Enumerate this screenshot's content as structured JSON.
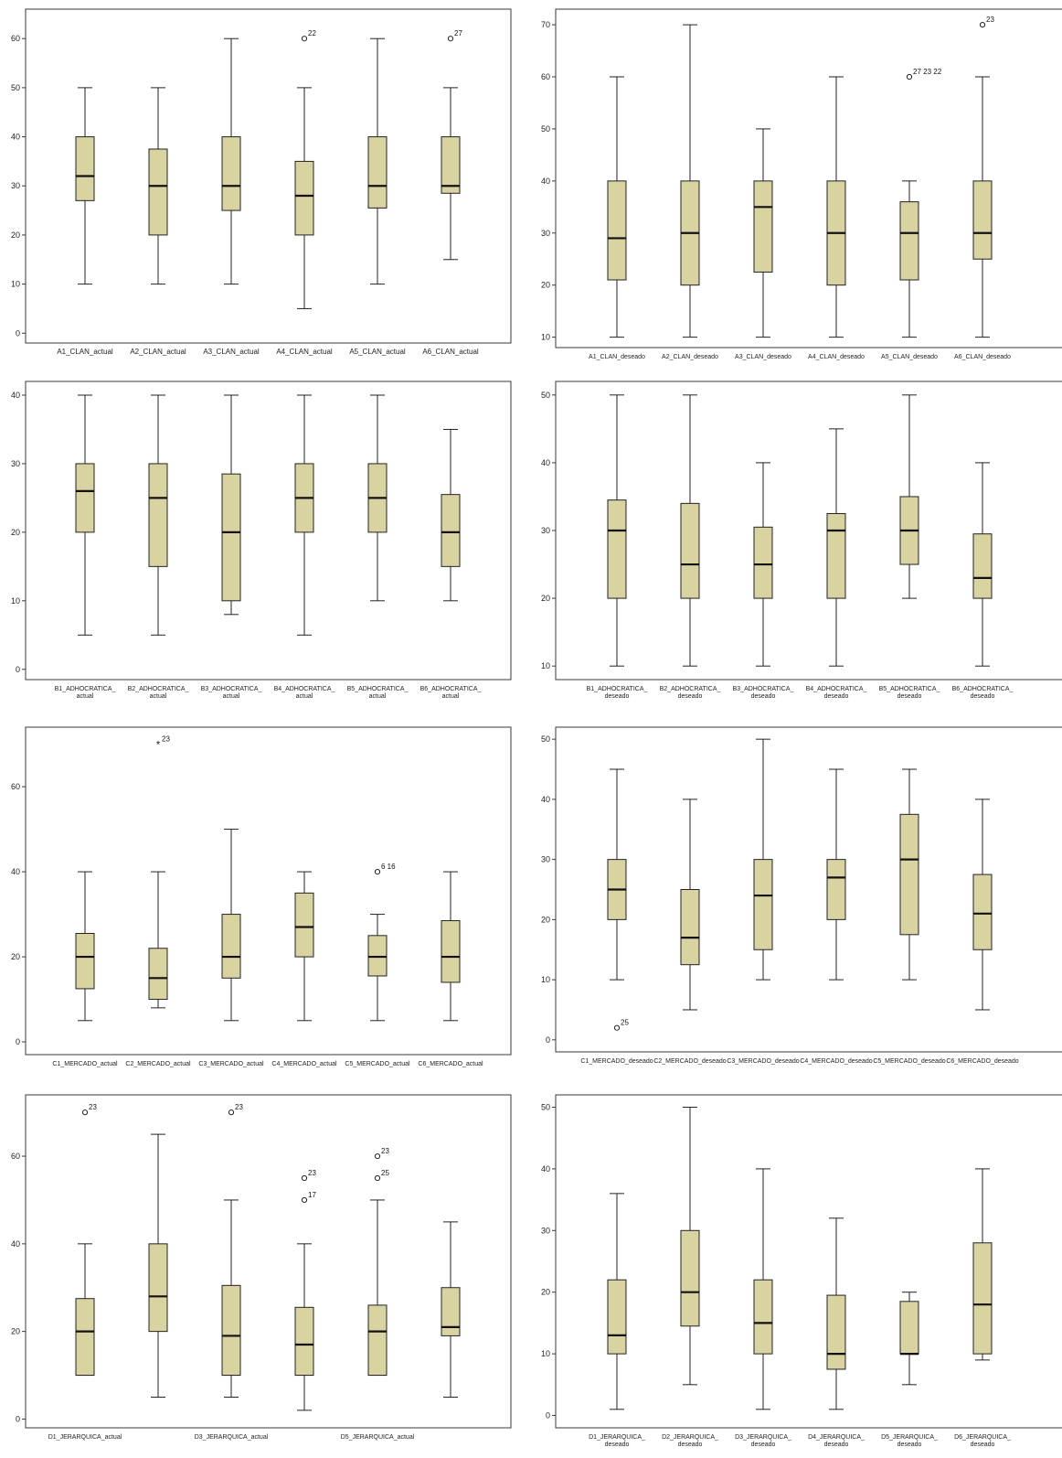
{
  "chart_data": [
    {
      "type": "boxplot",
      "yticks": [
        0,
        10,
        20,
        30,
        40,
        50,
        60
      ],
      "ylim": [
        -2,
        66
      ],
      "categories": [
        "A1_CLAN_actual",
        "A2_CLAN_actual",
        "A3_CLAN_actual",
        "A4_CLAN_actual",
        "A5_CLAN_actual",
        "A6_CLAN_actual"
      ],
      "boxes": [
        {
          "min": 10,
          "q1": 27,
          "median": 32,
          "q3": 40,
          "max": 50,
          "outliers": []
        },
        {
          "min": 10,
          "q1": 20,
          "median": 30,
          "q3": 37.5,
          "max": 50,
          "outliers": []
        },
        {
          "min": 10,
          "q1": 25,
          "median": 30,
          "q3": 40,
          "max": 60,
          "outliers": []
        },
        {
          "min": 5,
          "q1": 20,
          "median": 28,
          "q3": 35,
          "max": 50,
          "outliers": [
            {
              "value": 60,
              "label": "22",
              "kind": "circle"
            }
          ]
        },
        {
          "min": 10,
          "q1": 25.5,
          "median": 30,
          "q3": 40,
          "max": 60,
          "outliers": []
        },
        {
          "min": 15,
          "q1": 28.5,
          "median": 30,
          "q3": 40,
          "max": 50,
          "outliers": [
            {
              "value": 60,
              "label": "27",
              "kind": "circle"
            }
          ]
        }
      ]
    },
    {
      "type": "boxplot",
      "yticks": [
        10,
        20,
        30,
        40,
        50,
        60,
        70
      ],
      "ylim": [
        8,
        73
      ],
      "categories": [
        "A1_CLAN_deseado",
        "A2_CLAN_deseado",
        "A3_CLAN_deseado",
        "A4_CLAN_deseado",
        "A5_CLAN_deseado",
        "A6_CLAN_deseado"
      ],
      "boxes": [
        {
          "min": 10,
          "q1": 21,
          "median": 29,
          "q3": 40,
          "max": 60,
          "outliers": []
        },
        {
          "min": 10,
          "q1": 20,
          "median": 30,
          "q3": 40,
          "max": 70,
          "outliers": []
        },
        {
          "min": 10,
          "q1": 22.5,
          "median": 35,
          "q3": 40,
          "max": 50,
          "outliers": []
        },
        {
          "min": 10,
          "q1": 20,
          "median": 30,
          "q3": 40,
          "max": 60,
          "outliers": []
        },
        {
          "min": 10,
          "q1": 21,
          "median": 30,
          "q3": 36,
          "max": 40,
          "outliers": [
            {
              "value": 60,
              "label": "27 23 22",
              "kind": "circle"
            }
          ]
        },
        {
          "min": 10,
          "q1": 25,
          "median": 30,
          "q3": 40,
          "max": 60,
          "outliers": [
            {
              "value": 70,
              "label": "23",
              "kind": "circle"
            }
          ]
        }
      ]
    },
    {
      "type": "boxplot",
      "yticks": [
        0,
        10,
        20,
        30,
        40
      ],
      "ylim": [
        -1.5,
        42
      ],
      "categories": [
        "B1_ADHOCRATICA_ actual",
        "B2_ADHOCRATICA_ actual",
        "B3_ADHOCRATICA_ actual",
        "B4_ADHOCRATICA_ actual",
        "B5_ADHOCRATICA_ actual",
        "B6_ADHOCRATICA_ actual"
      ],
      "boxes": [
        {
          "min": 5,
          "q1": 20,
          "median": 26,
          "q3": 30,
          "max": 40,
          "outliers": []
        },
        {
          "min": 5,
          "q1": 15,
          "median": 25,
          "q3": 30,
          "max": 40,
          "outliers": []
        },
        {
          "min": 8,
          "q1": 10,
          "median": 20,
          "q3": 28.5,
          "max": 40,
          "outliers": []
        },
        {
          "min": 5,
          "q1": 20,
          "median": 25,
          "q3": 30,
          "max": 40,
          "outliers": []
        },
        {
          "min": 10,
          "q1": 20,
          "median": 25,
          "q3": 30,
          "max": 40,
          "outliers": []
        },
        {
          "min": 10,
          "q1": 15,
          "median": 20,
          "q3": 25.5,
          "max": 35,
          "outliers": []
        }
      ]
    },
    {
      "type": "boxplot",
      "yticks": [
        10,
        20,
        30,
        40,
        50
      ],
      "ylim": [
        8,
        52
      ],
      "categories": [
        "B1_ADHOCRATICA_ deseado",
        "B2_ADHOCRATICA_ deseado",
        "B3_ADHOCRATICA_ deseado",
        "B4_ADHOCRATICA_ deseado",
        "B5_ADHOCRATICA_ deseado",
        "B6_ADHOCRATICA_ deseado"
      ],
      "boxes": [
        {
          "min": 10,
          "q1": 20,
          "median": 30,
          "q3": 34.5,
          "max": 50,
          "outliers": []
        },
        {
          "min": 10,
          "q1": 20,
          "median": 25,
          "q3": 34,
          "max": 50,
          "outliers": []
        },
        {
          "min": 10,
          "q1": 20,
          "median": 25,
          "q3": 30.5,
          "max": 40,
          "outliers": []
        },
        {
          "min": 10,
          "q1": 20,
          "median": 30,
          "q3": 32.5,
          "max": 45,
          "outliers": []
        },
        {
          "min": 20,
          "q1": 25,
          "median": 30,
          "q3": 35,
          "max": 50,
          "outliers": []
        },
        {
          "min": 10,
          "q1": 20,
          "median": 23,
          "q3": 29.5,
          "max": 40,
          "outliers": []
        }
      ]
    },
    {
      "type": "boxplot",
      "yticks": [
        0,
        20,
        40,
        60
      ],
      "ylim": [
        -3,
        74
      ],
      "categories": [
        "C1_MERCADO_actual",
        "C2_MERCADO_actual",
        "C3_MERCADO_actual",
        "C4_MERCADO_actual",
        "C5_MERCADO_actual",
        "C6_MERCADO_actual"
      ],
      "boxes": [
        {
          "min": 5,
          "q1": 12.5,
          "median": 20,
          "q3": 25.5,
          "max": 40,
          "outliers": []
        },
        {
          "min": 8,
          "q1": 10,
          "median": 15,
          "q3": 22,
          "max": 40,
          "outliers": [
            {
              "value": 70,
              "label": "23",
              "kind": "star"
            }
          ]
        },
        {
          "min": 5,
          "q1": 15,
          "median": 20,
          "q3": 30,
          "max": 50,
          "outliers": []
        },
        {
          "min": 5,
          "q1": 20,
          "median": 27,
          "q3": 35,
          "max": 40,
          "outliers": []
        },
        {
          "min": 5,
          "q1": 15.5,
          "median": 20,
          "q3": 25,
          "max": 30,
          "outliers": [
            {
              "value": 40,
              "label": "6 16",
              "kind": "circle"
            }
          ]
        },
        {
          "min": 5,
          "q1": 14,
          "median": 20,
          "q3": 28.5,
          "max": 40,
          "outliers": []
        }
      ]
    },
    {
      "type": "boxplot",
      "yticks": [
        0,
        10,
        20,
        30,
        40,
        50
      ],
      "ylim": [
        -2,
        52
      ],
      "categories": [
        "C1_MERCADO_deseado",
        "C2_MERCADO_deseado",
        "C3_MERCADO_deseado",
        "C4_MERCADO_deseado",
        "C5_MERCADO_deseado",
        "C6_MERCADO_deseado"
      ],
      "boxes": [
        {
          "min": 10,
          "q1": 20,
          "median": 25,
          "q3": 30,
          "max": 45,
          "outliers": [
            {
              "value": 2,
              "label": "25",
              "kind": "circle"
            }
          ]
        },
        {
          "min": 5,
          "q1": 12.5,
          "median": 17,
          "q3": 25,
          "max": 40,
          "outliers": []
        },
        {
          "min": 10,
          "q1": 15,
          "median": 24,
          "q3": 30,
          "max": 50,
          "outliers": []
        },
        {
          "min": 10,
          "q1": 20,
          "median": 27,
          "q3": 30,
          "max": 45,
          "outliers": []
        },
        {
          "min": 10,
          "q1": 17.5,
          "median": 30,
          "q3": 37.5,
          "max": 45,
          "outliers": []
        },
        {
          "min": 5,
          "q1": 15,
          "median": 21,
          "q3": 27.5,
          "max": 40,
          "outliers": []
        }
      ]
    },
    {
      "type": "boxplot",
      "yticks": [
        0,
        20,
        40,
        60
      ],
      "ylim": [
        -2,
        74
      ],
      "categories": [
        "D1_JERARQUICA_actual",
        "",
        "D3_JERARQUICA_actual",
        "",
        "D5_JERARQUICA_actual",
        ""
      ],
      "boxes": [
        {
          "min": 10,
          "q1": 10,
          "median": 20,
          "q3": 27.5,
          "max": 40,
          "outliers": [
            {
              "value": 70,
              "label": "23",
              "kind": "circle"
            }
          ]
        },
        {
          "min": 5,
          "q1": 20,
          "median": 28,
          "q3": 40,
          "max": 65,
          "outliers": []
        },
        {
          "min": 5,
          "q1": 10,
          "median": 19,
          "q3": 30.5,
          "max": 50,
          "outliers": [
            {
              "value": 70,
              "label": "23",
              "kind": "circle"
            }
          ]
        },
        {
          "min": 2,
          "q1": 10,
          "median": 17,
          "q3": 25.5,
          "max": 40,
          "outliers": [
            {
              "value": 55,
              "label": "23",
              "kind": "circle"
            },
            {
              "value": 50,
              "label": "17",
              "kind": "circle"
            }
          ]
        },
        {
          "min": 10,
          "q1": 10,
          "median": 20,
          "q3": 26,
          "max": 50,
          "outliers": [
            {
              "value": 60,
              "label": "23",
              "kind": "circle"
            },
            {
              "value": 55,
              "label": "25",
              "kind": "circle"
            }
          ]
        },
        {
          "min": 5,
          "q1": 19,
          "median": 21,
          "q3": 30,
          "max": 45,
          "outliers": []
        }
      ]
    },
    {
      "type": "boxplot",
      "yticks": [
        0,
        10,
        20,
        30,
        40,
        50
      ],
      "ylim": [
        -2,
        52
      ],
      "categories": [
        "D1_JERARQUICA_ deseado",
        "D2_JERARQUICA_ deseado",
        "D3_JERARQUICA_ deseado",
        "D4_JERARQUICA_ deseado",
        "D5_JERARQUICA_ deseado",
        "D6_JERARQUICA_ deseado"
      ],
      "boxes": [
        {
          "min": 1,
          "q1": 10,
          "median": 13,
          "q3": 22,
          "max": 36,
          "outliers": []
        },
        {
          "min": 5,
          "q1": 14.5,
          "median": 20,
          "q3": 30,
          "max": 50,
          "outliers": []
        },
        {
          "min": 1,
          "q1": 10,
          "median": 15,
          "q3": 22,
          "max": 40,
          "outliers": []
        },
        {
          "min": 1,
          "q1": 7.5,
          "median": 10,
          "q3": 19.5,
          "max": 32,
          "outliers": []
        },
        {
          "min": 5,
          "q1": 10,
          "median": 10,
          "q3": 18.5,
          "max": 20,
          "outliers": []
        },
        {
          "min": 9,
          "q1": 10,
          "median": 18,
          "q3": 28,
          "max": 40,
          "outliers": []
        }
      ]
    }
  ]
}
